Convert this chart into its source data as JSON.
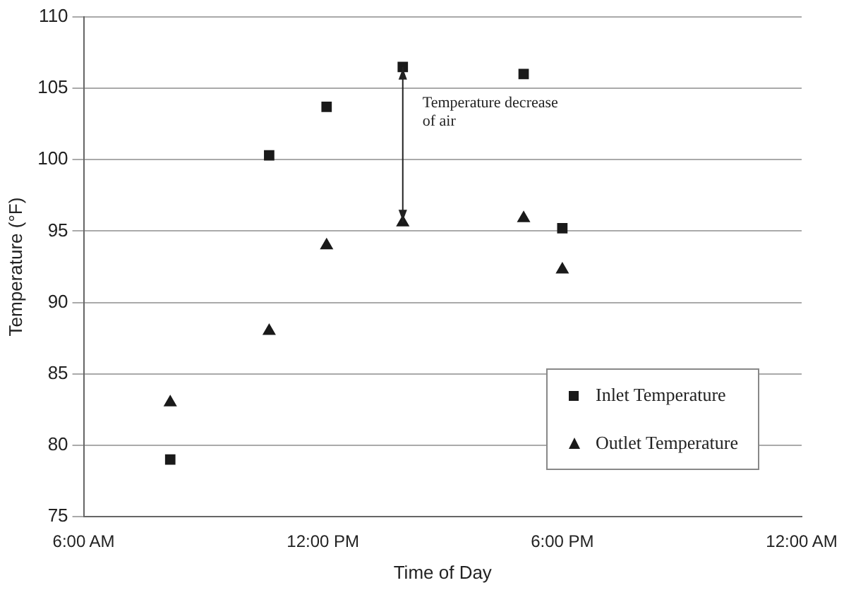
{
  "chart_data": {
    "type": "scatter",
    "xlabel": "Time of Day",
    "ylabel": "Temperature (°F)",
    "xlim": [
      6,
      24
    ],
    "xticks": [
      {
        "value": 6,
        "label": "6:00 AM"
      },
      {
        "value": 12,
        "label": "12:00 PM"
      },
      {
        "value": 18,
        "label": "6:00 PM"
      },
      {
        "value": 24,
        "label": "12:00 AM"
      }
    ],
    "ylim": [
      75,
      110
    ],
    "yticks": [
      75,
      80,
      85,
      90,
      95,
      100,
      105,
      110
    ],
    "grid": "y",
    "legend": "bottom right",
    "series": [
      {
        "name": "Inlet Temperature",
        "color": "#1a1a1a",
        "marker": "square",
        "x": [
          8.17,
          10.65,
          12.09,
          14,
          17.03,
          18
        ],
        "values": [
          79,
          100.3,
          103.7,
          106.5,
          106,
          95.2
        ]
      },
      {
        "name": "Outlet Temperature",
        "color": "#1a1a1a",
        "marker": "triangle",
        "x": [
          8.17,
          10.65,
          12.09,
          14,
          17.03,
          18
        ],
        "values": [
          83,
          88,
          94,
          95.6,
          95.9,
          92.3
        ]
      }
    ],
    "annotations": [
      {
        "text": "Temperature decrease of air",
        "x": 14,
        "y": 106.5
      }
    ]
  }
}
